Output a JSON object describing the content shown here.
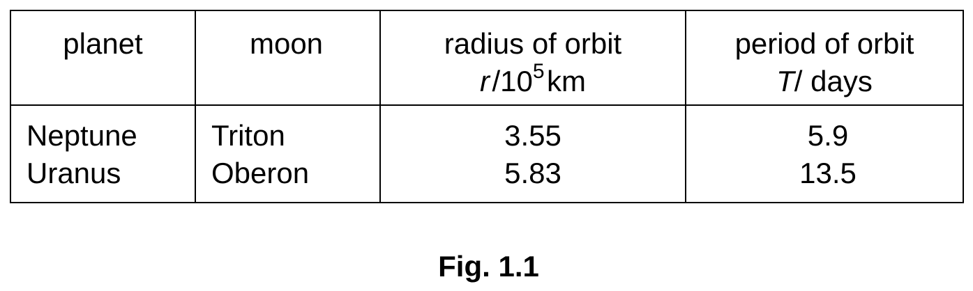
{
  "table": {
    "headers": {
      "planet": "planet",
      "moon": "moon",
      "radius": {
        "title": "radius of orbit",
        "symbol": "r",
        "unit_base": "/10",
        "unit_exponent": "5",
        "unit_suffix": "km"
      },
      "period": {
        "title": "period of orbit",
        "symbol": "T",
        "unit_suffix": "/ days"
      }
    },
    "rows": [
      {
        "planet": "Neptune",
        "moon": "Triton",
        "radius": "3.55",
        "period": "5.9"
      },
      {
        "planet": "Uranus",
        "moon": "Oberon",
        "radius": "5.83",
        "period": "13.5"
      }
    ]
  },
  "caption": "Fig. 1.1"
}
